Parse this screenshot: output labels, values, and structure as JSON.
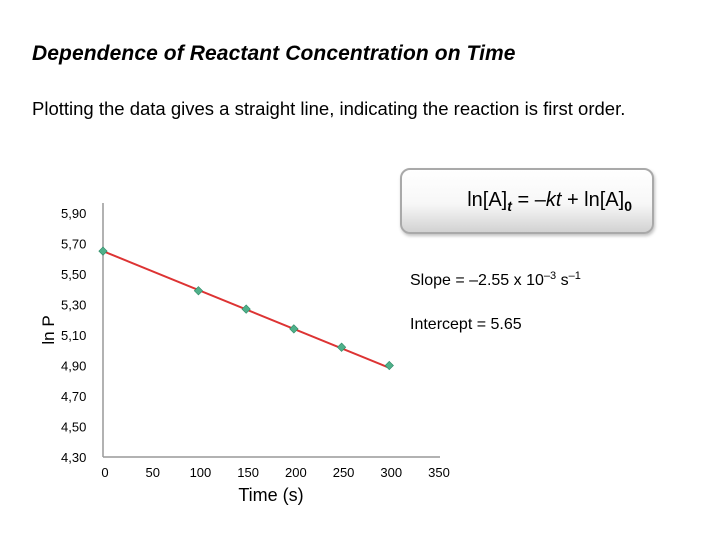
{
  "slide": {
    "title": "Dependence of Reactant Concentration on Time",
    "subtitle": "Plotting the data gives a straight line, indicating the reaction is first order."
  },
  "equation": {
    "part1": "ln[A]",
    "sub_t": "t",
    "part2": " = –",
    "k": "k",
    "t": "t",
    "part3": " + ln[A]",
    "sub_0": "0"
  },
  "slope_annotation": {
    "prefix": "Slope = –2.55 x 10",
    "exp1": "–3",
    "unit": " s",
    "exp2": "–1"
  },
  "intercept_annotation": "Intercept = 5.65",
  "chart_data": {
    "type": "scatter",
    "xlabel": "Time (s)",
    "ylabel": "ln P",
    "xlim": [
      0,
      350
    ],
    "ylim": [
      4.3,
      5.9
    ],
    "x_ticks": [
      "0",
      "50",
      "100",
      "150",
      "200",
      "250",
      "300",
      "350"
    ],
    "y_ticks": [
      "5,90",
      "5,70",
      "5,50",
      "5,30",
      "5,10",
      "4,90",
      "4,70",
      "4,50",
      "4,30"
    ],
    "x_tick_values": [
      0,
      50,
      100,
      150,
      200,
      250,
      300,
      350
    ],
    "y_tick_values": [
      5.9,
      5.7,
      5.5,
      5.3,
      5.1,
      4.9,
      4.7,
      4.5,
      4.3
    ],
    "points": [
      {
        "x": 0,
        "y": 5.65
      },
      {
        "x": 100,
        "y": 5.39
      },
      {
        "x": 150,
        "y": 5.27
      },
      {
        "x": 200,
        "y": 5.14
      },
      {
        "x": 250,
        "y": 5.02
      },
      {
        "x": 300,
        "y": 4.9
      }
    ],
    "fit_line": {
      "slope": -0.00255,
      "intercept": 5.65,
      "x_range": [
        0,
        300
      ]
    },
    "marker_color": "#4fb08a",
    "line_color": "#dd3333",
    "grid": false,
    "legend": "none"
  }
}
